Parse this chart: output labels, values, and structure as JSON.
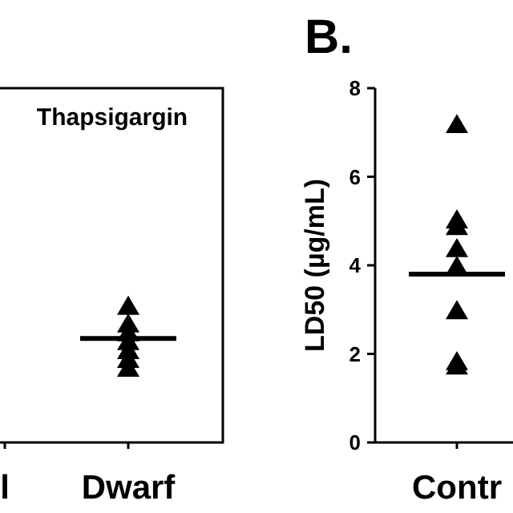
{
  "chart_data": [
    {
      "type": "scatter",
      "title": "Thapsigargin",
      "categories": [
        "l",
        "Dwarf"
      ],
      "ylim": [
        0,
        8
      ],
      "tick_labels": "x",
      "marker": "triangle",
      "series": [
        {
          "color": "#000000",
          "x": [
            "Dwarf",
            "Dwarf",
            "Dwarf",
            "Dwarf",
            "Dwarf",
            "Dwarf",
            "Dwarf"
          ],
          "values": [
            3.1,
            2.7,
            2.5,
            2.3,
            2.1,
            1.9,
            1.7
          ]
        }
      ],
      "ref_lines": [
        {
          "axis": "y",
          "value": 2.35,
          "label": null,
          "color": "#000000"
        }
      ]
    },
    {
      "type": "scatter",
      "title": "B.",
      "ylabel": "LD50 (µg/mL)",
      "categories": [
        "Contr"
      ],
      "ylim": [
        0,
        8
      ],
      "yticks": [
        0,
        2,
        4,
        6,
        8
      ],
      "marker": "triangle",
      "series": [
        {
          "color": "#000000",
          "x": [
            "Contr",
            "Contr",
            "Contr",
            "Contr",
            "Contr",
            "Contr",
            "Contr",
            "Contr"
          ],
          "values": [
            7.2,
            5.05,
            4.9,
            4.4,
            4.0,
            3.0,
            1.85,
            1.75
          ]
        }
      ],
      "ref_lines": [
        {
          "axis": "y",
          "value": 3.8,
          "label": null,
          "color": "#000000"
        }
      ]
    }
  ]
}
